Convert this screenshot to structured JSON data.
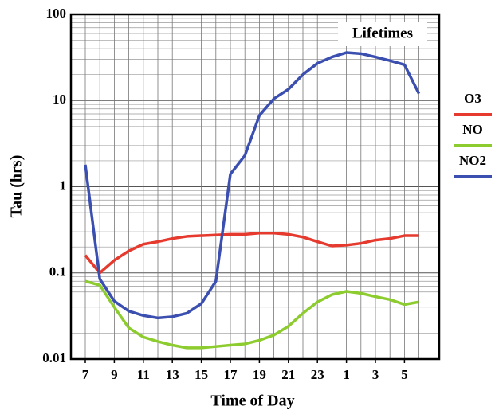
{
  "chart_data": {
    "type": "line",
    "title": "Lifetimes",
    "x_label": "Time of Day",
    "y_label": "Tau (hrs)",
    "categories": [
      7,
      null,
      9,
      null,
      11,
      null,
      13,
      null,
      15,
      null,
      17,
      null,
      19,
      null,
      21,
      null,
      23,
      null,
      1,
      null,
      3,
      null,
      5,
      null
    ],
    "ylog": true,
    "ylim": [
      0.01,
      100
    ],
    "yticks": [
      0.01,
      0.1,
      1,
      10,
      100
    ],
    "grid": true,
    "series": [
      {
        "name": "O3",
        "color": "#e63a2e",
        "values": [
          0.16,
          0.1,
          0.14,
          0.18,
          0.215,
          0.23,
          0.25,
          0.265,
          0.27,
          0.275,
          0.28,
          0.28,
          0.29,
          0.29,
          0.28,
          0.26,
          0.23,
          0.205,
          0.21,
          0.22,
          0.24,
          0.25,
          0.27,
          0.27
        ]
      },
      {
        "name": "NO",
        "color": "#8dcc2e",
        "values": [
          0.08,
          0.072,
          0.04,
          0.023,
          0.018,
          0.016,
          0.0145,
          0.0135,
          0.0135,
          0.014,
          0.0145,
          0.015,
          0.0165,
          0.019,
          0.024,
          0.034,
          0.046,
          0.056,
          0.061,
          0.058,
          0.053,
          0.049,
          0.043,
          0.046
        ]
      },
      {
        "name": "NO2",
        "color": "#3b4fb0",
        "values": [
          1.8,
          0.085,
          0.047,
          0.036,
          0.032,
          0.03,
          0.031,
          0.034,
          0.044,
          0.08,
          1.4,
          2.3,
          6.7,
          10.5,
          13.5,
          20,
          27,
          32,
          36,
          35,
          32,
          29,
          26,
          12
        ]
      }
    ]
  }
}
